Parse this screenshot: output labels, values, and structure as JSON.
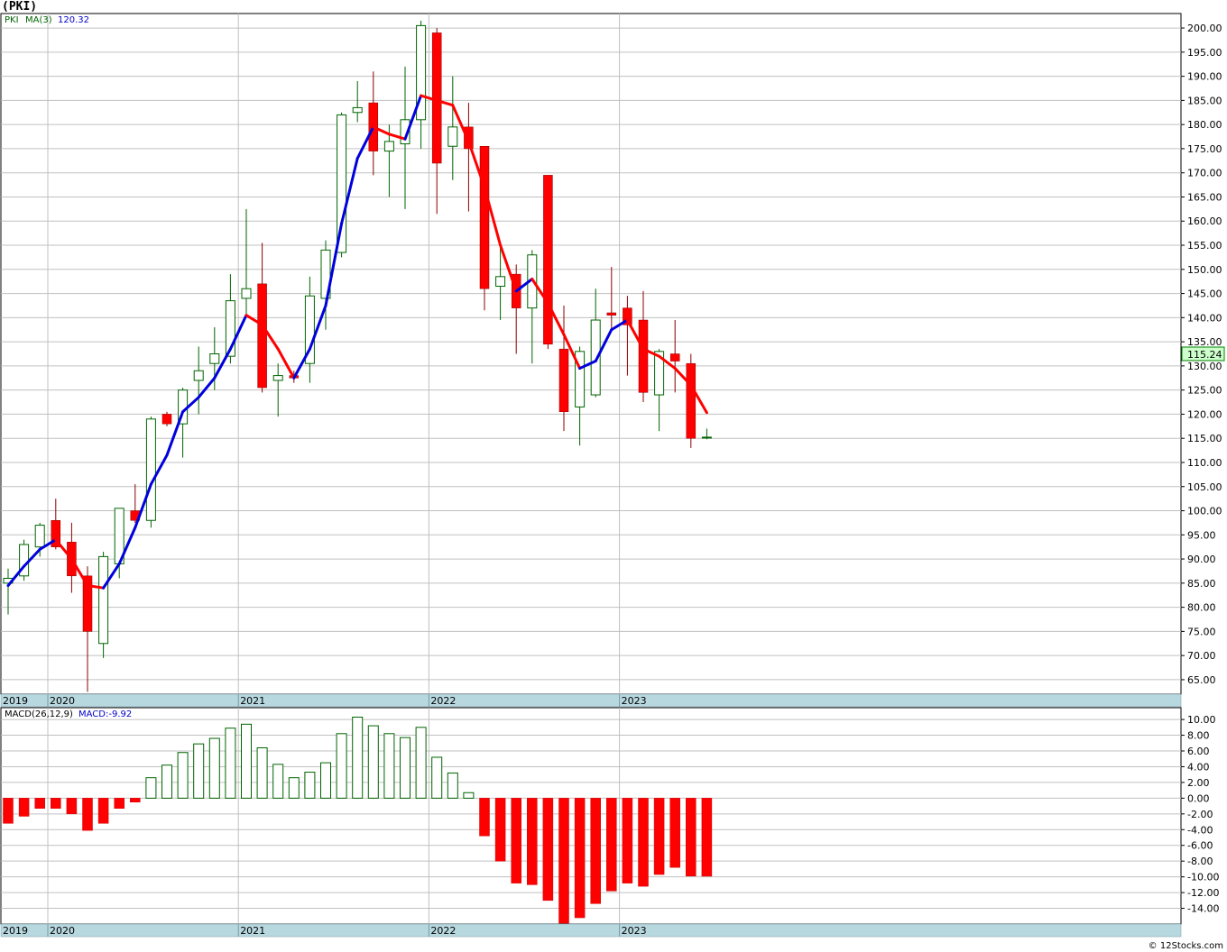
{
  "title": "(PKI)",
  "footer": "© 12Stocks.com",
  "colors": {
    "up_candle": "#006400",
    "down_candle": "#ff0000",
    "ma_up": "#0000dd",
    "ma_down": "#ff0000",
    "grid": "#c0c0c0",
    "axis_bar": "#b8d8e0",
    "last_box_bg": "#ccffcc",
    "last_box_border": "#008000"
  },
  "chart_data": [
    {
      "type": "candlestick",
      "ticker": "PKI",
      "legend": {
        "symbol": "PKI",
        "indicator": "MA(3)",
        "indicator_value": "120.32"
      },
      "last_price_label": "115.24",
      "ylim": [
        62,
        203
      ],
      "y_ticks": [
        "65.00",
        "70.00",
        "75.00",
        "80.00",
        "85.00",
        "90.00",
        "95.00",
        "100.00",
        "105.00",
        "110.00",
        "115.00",
        "120.00",
        "125.00",
        "130.00",
        "135.00",
        "140.00",
        "145.00",
        "150.00",
        "155.00",
        "160.00",
        "165.00",
        "170.00",
        "175.00",
        "180.00",
        "185.00",
        "190.00",
        "195.00",
        "200.00"
      ],
      "x_labels": [
        "2019",
        "2020",
        "2021",
        "2022",
        "2023"
      ],
      "candles": [
        {
          "o": 85.0,
          "h": 88.0,
          "l": 78.5,
          "c": 86.0
        },
        {
          "o": 86.5,
          "h": 94.0,
          "l": 85.5,
          "c": 93.0
        },
        {
          "o": 92.5,
          "h": 97.5,
          "l": 90.5,
          "c": 97.0
        },
        {
          "o": 98.0,
          "h": 102.5,
          "l": 92.0,
          "c": 92.5
        },
        {
          "o": 93.5,
          "h": 97.5,
          "l": 83.0,
          "c": 86.5
        },
        {
          "o": 86.5,
          "h": 88.5,
          "l": 62.5,
          "c": 75.0
        },
        {
          "o": 72.5,
          "h": 91.5,
          "l": 69.5,
          "c": 90.5
        },
        {
          "o": 89.0,
          "h": 100.5,
          "l": 86.0,
          "c": 100.5
        },
        {
          "o": 100.0,
          "h": 105.5,
          "l": 97.5,
          "c": 98.0
        },
        {
          "o": 98.0,
          "h": 119.5,
          "l": 96.5,
          "c": 119.0
        },
        {
          "o": 120.0,
          "h": 120.5,
          "l": 117.5,
          "c": 118.0
        },
        {
          "o": 118.0,
          "h": 125.5,
          "l": 111.0,
          "c": 125.0
        },
        {
          "o": 127.0,
          "h": 134.0,
          "l": 120.0,
          "c": 129.0
        },
        {
          "o": 130.5,
          "h": 138.0,
          "l": 125.0,
          "c": 132.5
        },
        {
          "o": 132.0,
          "h": 149.0,
          "l": 130.5,
          "c": 143.5
        },
        {
          "o": 144.0,
          "h": 162.5,
          "l": 140.0,
          "c": 146.0
        },
        {
          "o": 147.0,
          "h": 155.5,
          "l": 124.5,
          "c": 125.5
        },
        {
          "o": 127.0,
          "h": 130.5,
          "l": 119.5,
          "c": 128.0
        },
        {
          "o": 128.0,
          "h": 129.0,
          "l": 126.5,
          "c": 127.5
        },
        {
          "o": 130.5,
          "h": 148.5,
          "l": 126.5,
          "c": 144.5
        },
        {
          "o": 144.0,
          "h": 156.0,
          "l": 137.5,
          "c": 154.0
        },
        {
          "o": 153.5,
          "h": 182.5,
          "l": 152.5,
          "c": 182.0
        },
        {
          "o": 182.5,
          "h": 189.0,
          "l": 180.5,
          "c": 183.5
        },
        {
          "o": 184.5,
          "h": 191.0,
          "l": 169.5,
          "c": 174.5
        },
        {
          "o": 174.5,
          "h": 180.0,
          "l": 165.0,
          "c": 176.5
        },
        {
          "o": 176.0,
          "h": 192.0,
          "l": 162.5,
          "c": 181.0
        },
        {
          "o": 181.0,
          "h": 201.5,
          "l": 175.0,
          "c": 200.5
        },
        {
          "o": 199.0,
          "h": 200.0,
          "l": 161.5,
          "c": 172.0
        },
        {
          "o": 175.5,
          "h": 190.0,
          "l": 168.5,
          "c": 179.5
        },
        {
          "o": 179.5,
          "h": 184.5,
          "l": 162.0,
          "c": 175.0
        },
        {
          "o": 175.5,
          "h": 175.5,
          "l": 141.5,
          "c": 146.0
        },
        {
          "o": 146.5,
          "h": 155.0,
          "l": 139.5,
          "c": 148.5
        },
        {
          "o": 149.0,
          "h": 151.0,
          "l": 132.5,
          "c": 142.0
        },
        {
          "o": 142.0,
          "h": 154.0,
          "l": 130.5,
          "c": 153.0
        },
        {
          "o": 169.5,
          "h": 169.5,
          "l": 133.5,
          "c": 134.5
        },
        {
          "o": 133.5,
          "h": 142.5,
          "l": 116.5,
          "c": 120.5
        },
        {
          "o": 121.5,
          "h": 134.0,
          "l": 113.5,
          "c": 133.0
        },
        {
          "o": 124.0,
          "h": 146.0,
          "l": 123.5,
          "c": 139.5
        },
        {
          "o": 141.0,
          "h": 150.5,
          "l": 137.5,
          "c": 140.5
        },
        {
          "o": 142.0,
          "h": 144.5,
          "l": 128.0,
          "c": 138.5
        },
        {
          "o": 139.5,
          "h": 145.5,
          "l": 122.5,
          "c": 124.5
        },
        {
          "o": 124.0,
          "h": 133.5,
          "l": 116.5,
          "c": 133.0
        },
        {
          "o": 132.5,
          "h": 139.5,
          "l": 124.5,
          "c": 131.0
        },
        {
          "o": 130.5,
          "h": 132.5,
          "l": 113.0,
          "c": 115.0
        },
        {
          "o": 115.24,
          "h": 117.0,
          "l": 114.8,
          "c": 115.24
        }
      ],
      "moving_average": [
        84.5,
        88.5,
        92.0,
        94.0,
        90.0,
        84.5,
        84.0,
        89.0,
        96.5,
        105.5,
        111.5,
        120.5,
        123.5,
        127.5,
        133.5,
        140.5,
        138.5,
        133.5,
        127.5,
        133.5,
        142.5,
        159.5,
        173.0,
        179.5,
        178.0,
        177.0,
        186.0,
        185.0,
        184.0,
        176.5,
        167.0,
        155.0,
        145.5,
        148.0,
        143.0,
        136.5,
        129.5,
        131.0,
        137.5,
        139.5,
        133.5,
        132.0,
        129.5,
        126.0,
        120.32
      ]
    },
    {
      "type": "bar",
      "indicator": "MACD(26,12,9)",
      "legend": {
        "label": "MACD(26,12,9)",
        "value_label": "MACD:-9.92"
      },
      "ylim": [
        -16,
        11.5
      ],
      "y_ticks": [
        "10.00",
        "8.00",
        "6.00",
        "4.00",
        "2.00",
        "0.00",
        "-2.00",
        "-4.00",
        "-6.00",
        "-8.00",
        "-10.00",
        "-12.00",
        "-14.00"
      ],
      "x_labels": [
        "2019",
        "2020",
        "2021",
        "2022",
        "2023"
      ],
      "values": [
        -3.2,
        -2.3,
        -1.3,
        -1.3,
        -2.0,
        -4.1,
        -3.2,
        -1.3,
        -0.5,
        2.6,
        4.2,
        5.8,
        6.9,
        7.6,
        8.9,
        9.4,
        6.4,
        4.3,
        2.6,
        3.3,
        4.5,
        8.2,
        10.3,
        9.2,
        8.2,
        7.7,
        9.0,
        5.2,
        3.2,
        0.7,
        -4.8,
        -8.0,
        -10.8,
        -11.0,
        -13.0,
        -15.9,
        -15.2,
        -13.4,
        -11.8,
        -10.8,
        -11.2,
        -9.7,
        -8.8,
        -9.9,
        -9.92
      ]
    }
  ]
}
